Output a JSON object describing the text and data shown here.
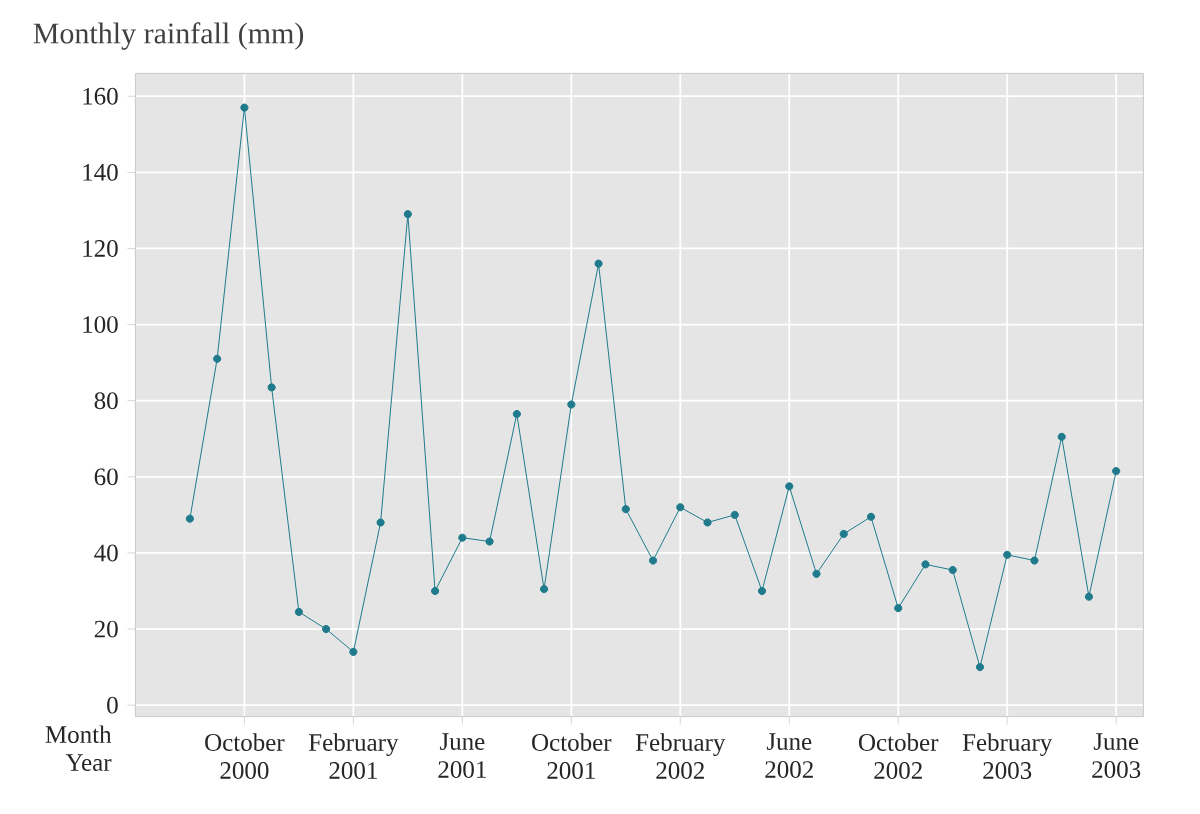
{
  "chart_data": {
    "type": "line",
    "title": "Monthly rainfall (mm)",
    "xlabel": "Month Year",
    "x": [
      "2000-08",
      "2000-09",
      "2000-10",
      "2000-11",
      "2000-12",
      "2001-01",
      "2001-02",
      "2001-03",
      "2001-04",
      "2001-05",
      "2001-06",
      "2001-07",
      "2001-08",
      "2001-09",
      "2001-10",
      "2001-11",
      "2001-12",
      "2002-01",
      "2002-02",
      "2002-03",
      "2002-04",
      "2002-05",
      "2002-06",
      "2002-07",
      "2002-08",
      "2002-09",
      "2002-10",
      "2002-11",
      "2002-12",
      "2003-01",
      "2003-02",
      "2003-03",
      "2003-04",
      "2003-05",
      "2003-06"
    ],
    "series": [
      {
        "color": "#1f7a8c",
        "values": [
          49,
          91,
          157,
          83.5,
          24.5,
          20,
          14,
          48,
          129,
          30,
          44,
          43,
          76.5,
          30.5,
          79,
          116,
          51.5,
          38,
          52,
          48,
          50,
          30,
          57.5,
          34.5,
          45,
          49.5,
          25.5,
          37,
          35.5,
          10,
          39.5,
          38,
          70.5,
          28.5,
          61.5
        ]
      }
    ],
    "marker": "circle",
    "line_style": "solid",
    "grid": true,
    "xlim": [
      "2000-06",
      "2003-07"
    ],
    "ylim": [
      -3,
      166
    ],
    "xticks": [
      {
        "value": "2000-10",
        "label": "October 2000"
      },
      {
        "value": "2001-02",
        "label": "February 2001"
      },
      {
        "value": "2001-06",
        "label": "June 2001"
      },
      {
        "value": "2001-10",
        "label": "October 2001"
      },
      {
        "value": "2002-02",
        "label": "February 2002"
      },
      {
        "value": "2002-06",
        "label": "June 2002"
      },
      {
        "value": "2002-10",
        "label": "October 2002"
      },
      {
        "value": "2003-02",
        "label": "February 2003"
      },
      {
        "value": "2003-06",
        "label": "June 2003"
      }
    ],
    "yticks": [
      0,
      20,
      40,
      60,
      80,
      100,
      120,
      140,
      160
    ]
  }
}
